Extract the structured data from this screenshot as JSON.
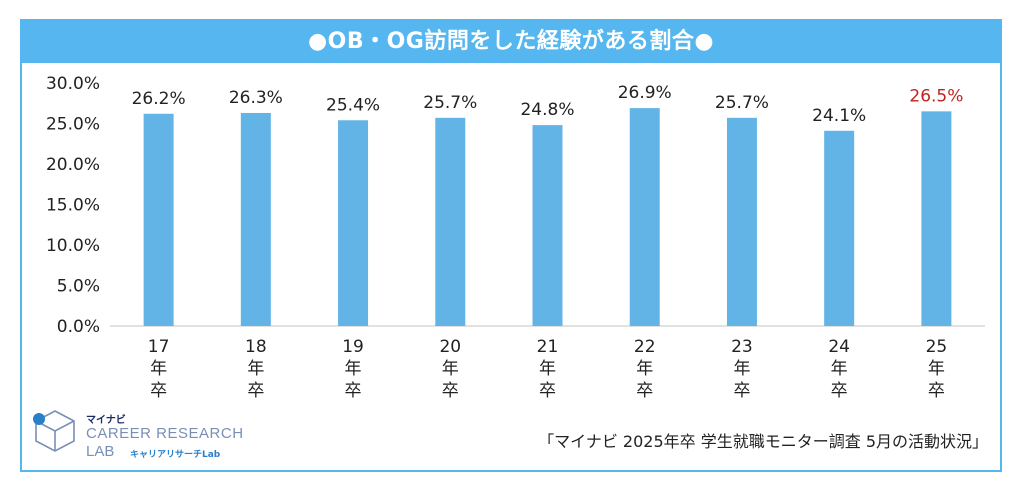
{
  "title": "●OB・OG訪問をした経験がある割合●",
  "source": "「マイナビ 2025年卒 学生就職モニター調査 5月の活動状況」",
  "logo": {
    "small": "マイナビ",
    "line1": "CAREER RESEARCH",
    "line2": "LAB",
    "line2_sub": "キャリアリサーチLab"
  },
  "colors": {
    "bar": "#62b4e6",
    "highlight_label": "#c0231e",
    "frame": "#56b6ef"
  },
  "chart_data": {
    "type": "bar",
    "categories": [
      "17年卒",
      "18年卒",
      "19年卒",
      "20年卒",
      "21年卒",
      "22年卒",
      "23年卒",
      "24年卒",
      "25年卒"
    ],
    "category_lines": [
      [
        "17",
        "年",
        "卒"
      ],
      [
        "18",
        "年",
        "卒"
      ],
      [
        "19",
        "年",
        "卒"
      ],
      [
        "20",
        "年",
        "卒"
      ],
      [
        "21",
        "年",
        "卒"
      ],
      [
        "22",
        "年",
        "卒"
      ],
      [
        "23",
        "年",
        "卒"
      ],
      [
        "24",
        "年",
        "卒"
      ],
      [
        "25",
        "年",
        "卒"
      ]
    ],
    "values": [
      26.2,
      26.3,
      25.4,
      25.7,
      24.8,
      26.9,
      25.7,
      24.1,
      26.5
    ],
    "data_labels": [
      "26.2%",
      "26.3%",
      "25.4%",
      "25.7%",
      "24.8%",
      "26.9%",
      "25.7%",
      "24.1%",
      "26.5%"
    ],
    "highlight_index": 8,
    "ylim": [
      0,
      30
    ],
    "yticks": [
      0,
      5,
      10,
      15,
      20,
      25,
      30
    ],
    "ytick_labels": [
      "0.0%",
      "5.0%",
      "10.0%",
      "15.0%",
      "20.0%",
      "25.0%",
      "30.0%"
    ],
    "xlabel": "",
    "ylabel": "",
    "grid": false,
    "legend": "none"
  }
}
